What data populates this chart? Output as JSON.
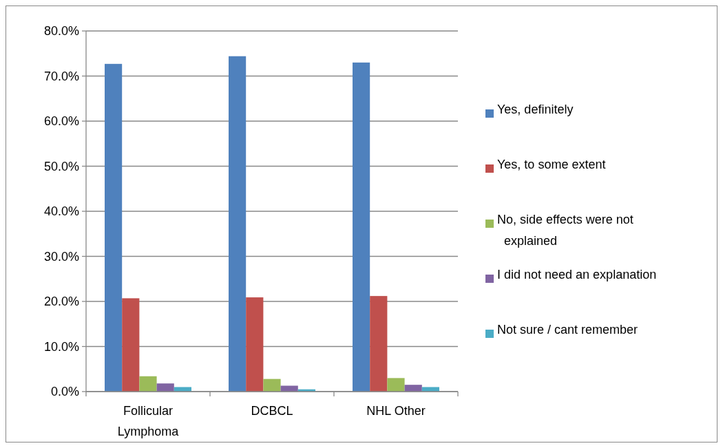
{
  "chart_data": {
    "type": "bar",
    "categories": [
      "Follicular Lymphoma",
      "DCBCL",
      "NHL Other"
    ],
    "series": [
      {
        "name": "Yes, definitely",
        "color": "#4f81bd",
        "values": [
          72.7,
          74.4,
          73.0
        ]
      },
      {
        "name": "Yes, to some extent",
        "color": "#c0504d",
        "values": [
          20.7,
          20.9,
          21.2
        ]
      },
      {
        "name": "No, side effects were not explained",
        "color": "#9bbb59",
        "values": [
          3.4,
          2.8,
          3.0
        ]
      },
      {
        "name": "I did not need an explanation",
        "color": "#8064a2",
        "values": [
          1.8,
          1.3,
          1.5
        ]
      },
      {
        "name": "Not sure / cant remember",
        "color": "#4bacc6",
        "values": [
          1.0,
          0.5,
          1.0
        ]
      }
    ],
    "ylim": [
      0,
      80
    ],
    "yticks": [
      {
        "value": 0,
        "label": "0.0%"
      },
      {
        "value": 10,
        "label": "10.0%"
      },
      {
        "value": 20,
        "label": "20.0%"
      },
      {
        "value": 30,
        "label": "30.0%"
      },
      {
        "value": 40,
        "label": "40.0%"
      },
      {
        "value": 50,
        "label": "50.0%"
      },
      {
        "value": 60,
        "label": "60.0%"
      },
      {
        "value": 70,
        "label": "70.0%"
      },
      {
        "value": 80,
        "label": "80.0%"
      }
    ],
    "grid": "y",
    "legend": "right"
  }
}
